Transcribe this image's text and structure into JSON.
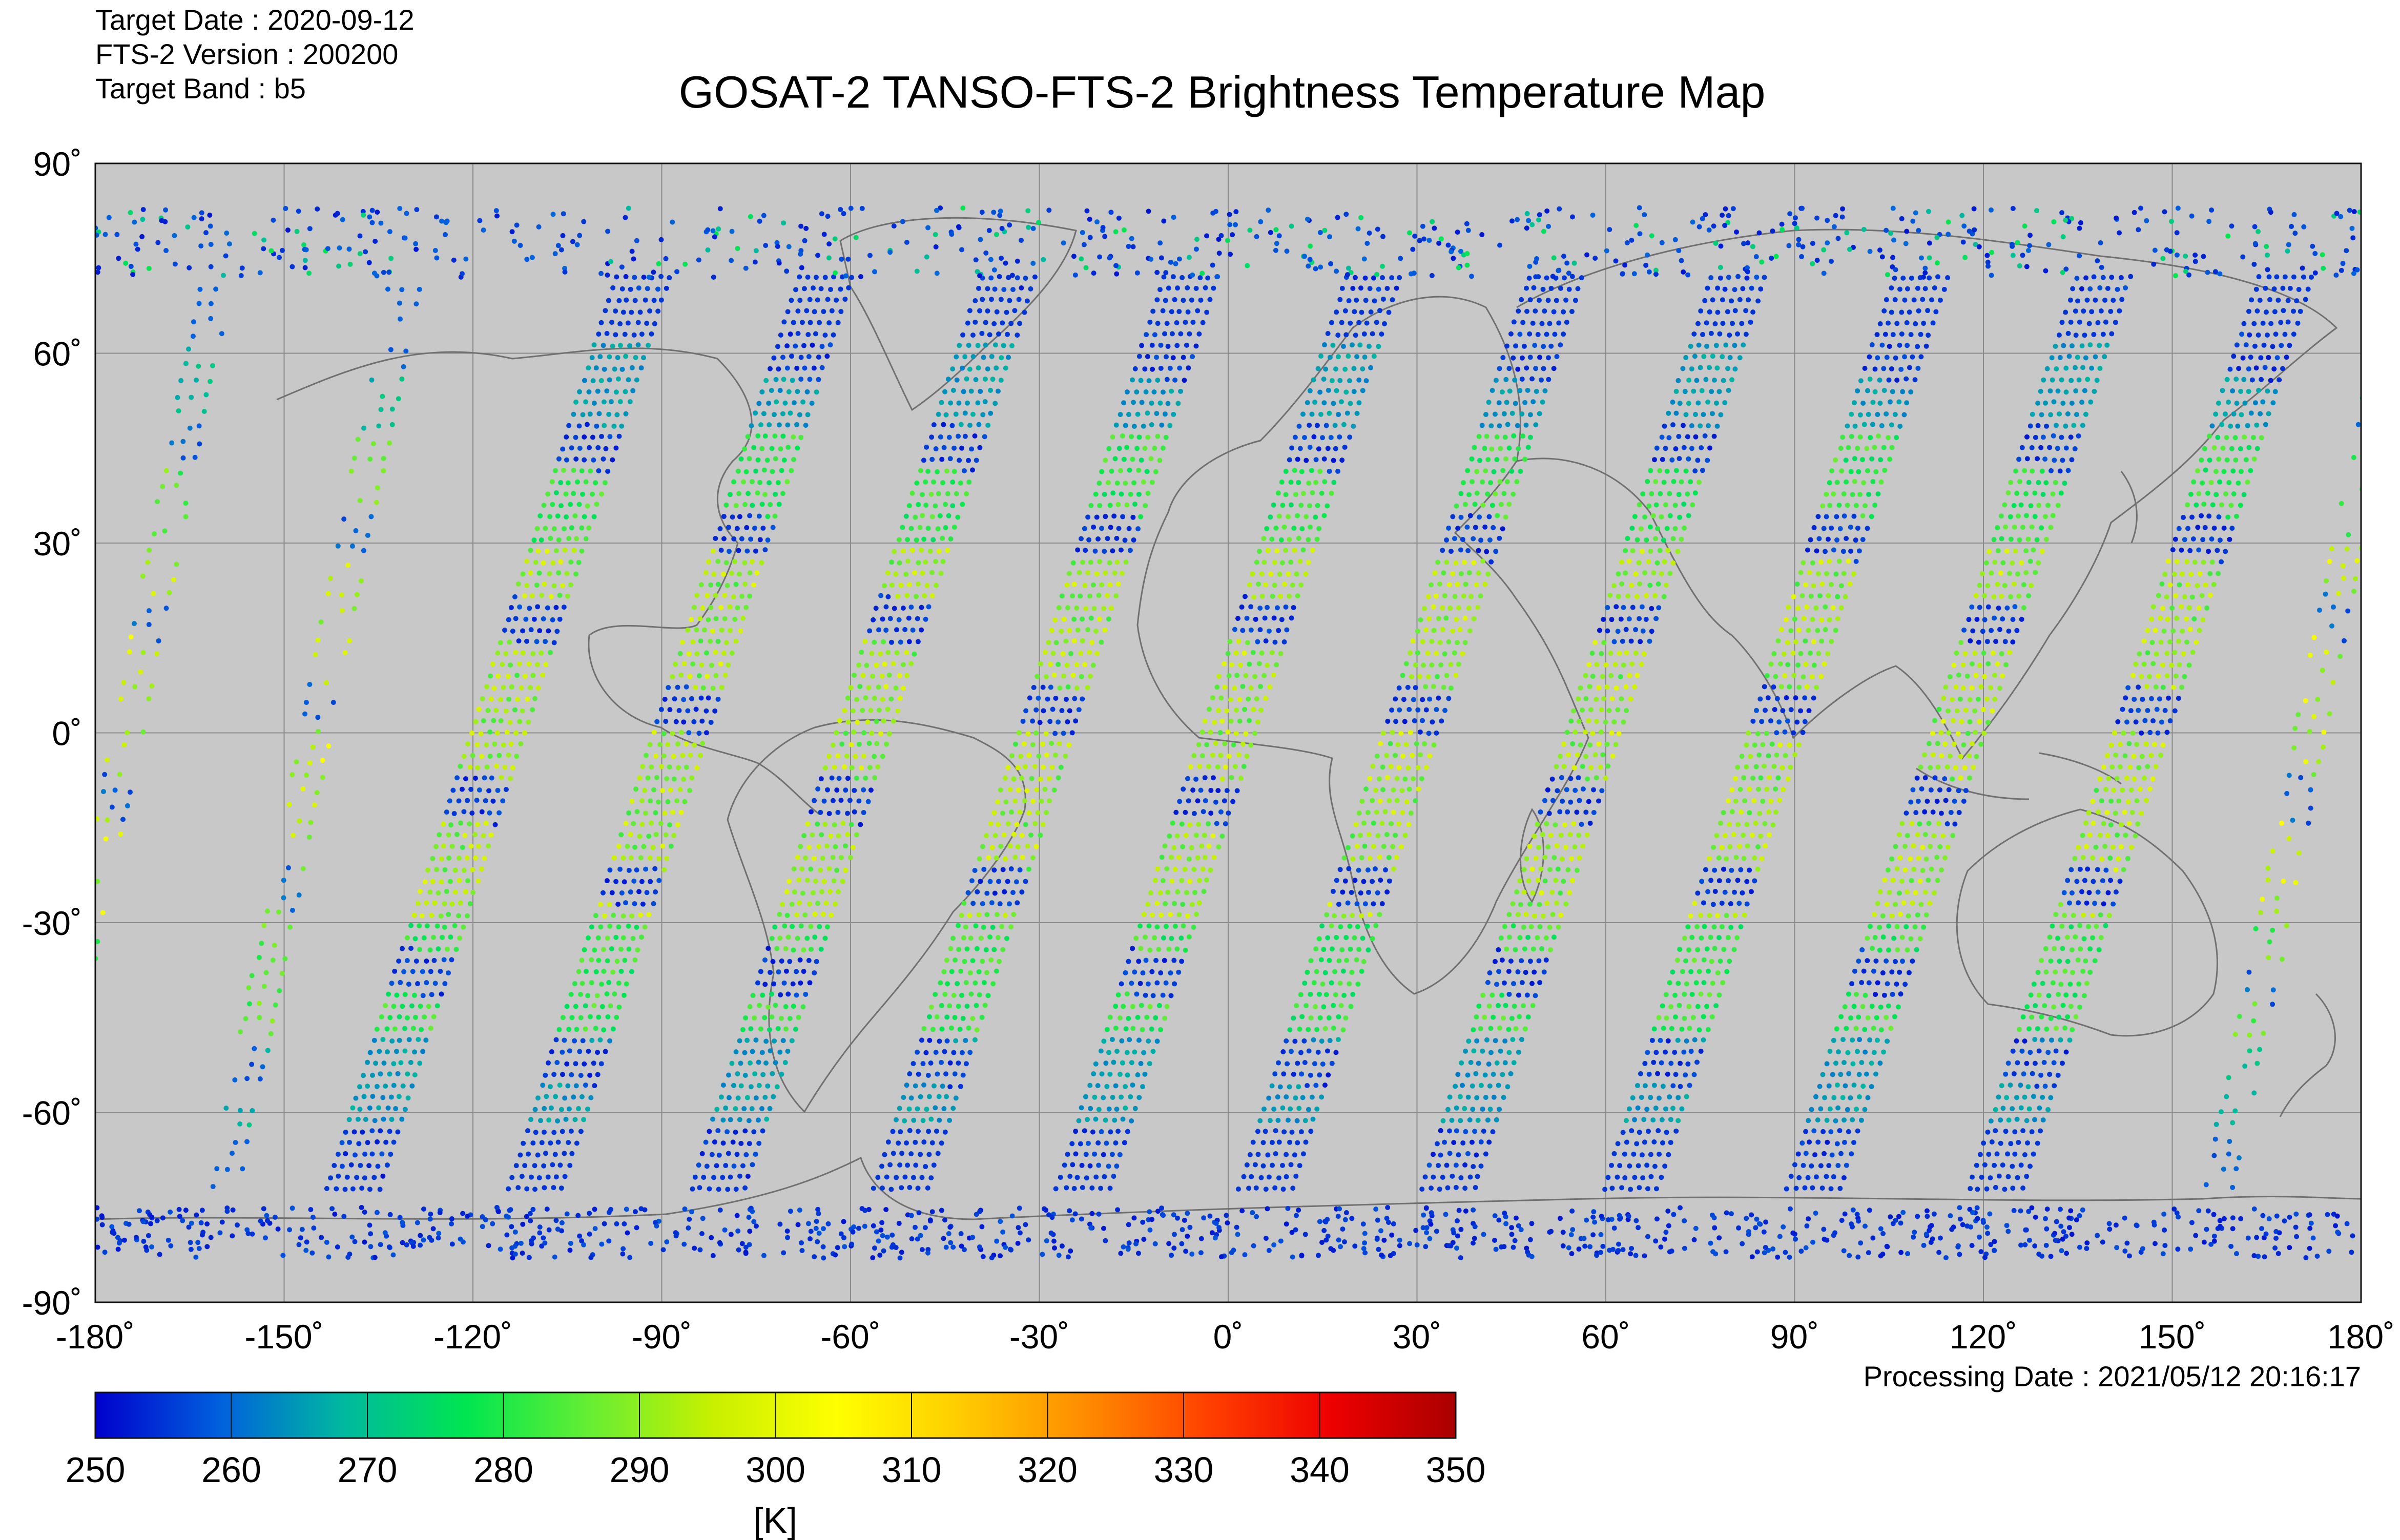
{
  "header": {
    "target_date_label": "Target Date   : 2020-09-12",
    "version_label": "FTS-2 Version : 200200",
    "band_label": "Target Band   : b5",
    "title": "GOSAT-2 TANSO-FTS-2 Brightness Temperature Map"
  },
  "footer": {
    "processing_date": "Processing Date : 2021/05/12 20:16:17"
  },
  "chart_data": {
    "type": "map-scatter",
    "projection": "equirectangular",
    "title": "GOSAT-2 TANSO-FTS-2 Brightness Temperature Map",
    "xlim": [
      -180,
      180
    ],
    "ylim": [
      -90,
      90
    ],
    "grid": true,
    "background_color": "#c8c8c8",
    "coastline_color": "#6e6e6e",
    "x_ticks": [
      -180,
      -150,
      -120,
      -90,
      -60,
      -30,
      0,
      30,
      60,
      90,
      120,
      150,
      180
    ],
    "y_ticks": [
      -90,
      -60,
      -30,
      0,
      30,
      60,
      90
    ],
    "x_tick_labels": [
      "-180˚",
      "-150˚",
      "-120˚",
      "-90˚",
      "-60˚",
      "-30˚",
      "0˚",
      "30˚",
      "60˚",
      "90˚",
      "120˚",
      "150˚",
      "180˚"
    ],
    "y_tick_labels": [
      "-90˚",
      "-60˚",
      "-30˚",
      "0˚",
      "30˚",
      "60˚",
      "90˚"
    ],
    "colorbar": {
      "min": 250,
      "max": 350,
      "ticks": [
        250,
        260,
        270,
        280,
        290,
        300,
        310,
        320,
        330,
        340,
        350
      ],
      "tick_labels": [
        "250",
        "260",
        "270",
        "280",
        "290",
        "300",
        "310",
        "320",
        "330",
        "340",
        "350"
      ],
      "unit_label": "[K]",
      "colors": [
        "#0000cc",
        "#0060dd",
        "#00b8a0",
        "#00e650",
        "#66ee33",
        "#c8f000",
        "#ffff00",
        "#ffcc00",
        "#ff8c00",
        "#ff4000",
        "#ee0000",
        "#aa0000"
      ]
    },
    "orbit_tracks": [
      {
        "lon_at_equator": -175,
        "kind": "ascending-sparse"
      },
      {
        "lon_at_equator": -145,
        "kind": "ascending-sparse"
      },
      {
        "lon_at_equator": -116,
        "kind": "descending-grid"
      },
      {
        "lon_at_equator": -87,
        "kind": "descending-grid"
      },
      {
        "lon_at_equator": -58,
        "kind": "descending-grid"
      },
      {
        "lon_at_equator": -29,
        "kind": "descending-grid"
      },
      {
        "lon_at_equator": 0,
        "kind": "descending-grid"
      },
      {
        "lon_at_equator": 29,
        "kind": "descending-grid"
      },
      {
        "lon_at_equator": 58,
        "kind": "descending-grid"
      },
      {
        "lon_at_equator": 87,
        "kind": "descending-grid"
      },
      {
        "lon_at_equator": 116,
        "kind": "descending-grid"
      },
      {
        "lon_at_equator": 145,
        "kind": "descending-grid"
      },
      {
        "lon_at_equator": 172,
        "kind": "ascending-sparse"
      }
    ],
    "polar_scatter": {
      "lat_min": -83,
      "lat_max": -75,
      "temperature_k": 255
    },
    "north_scatter": {
      "lat_min": 72,
      "lat_max": 83
    }
  }
}
